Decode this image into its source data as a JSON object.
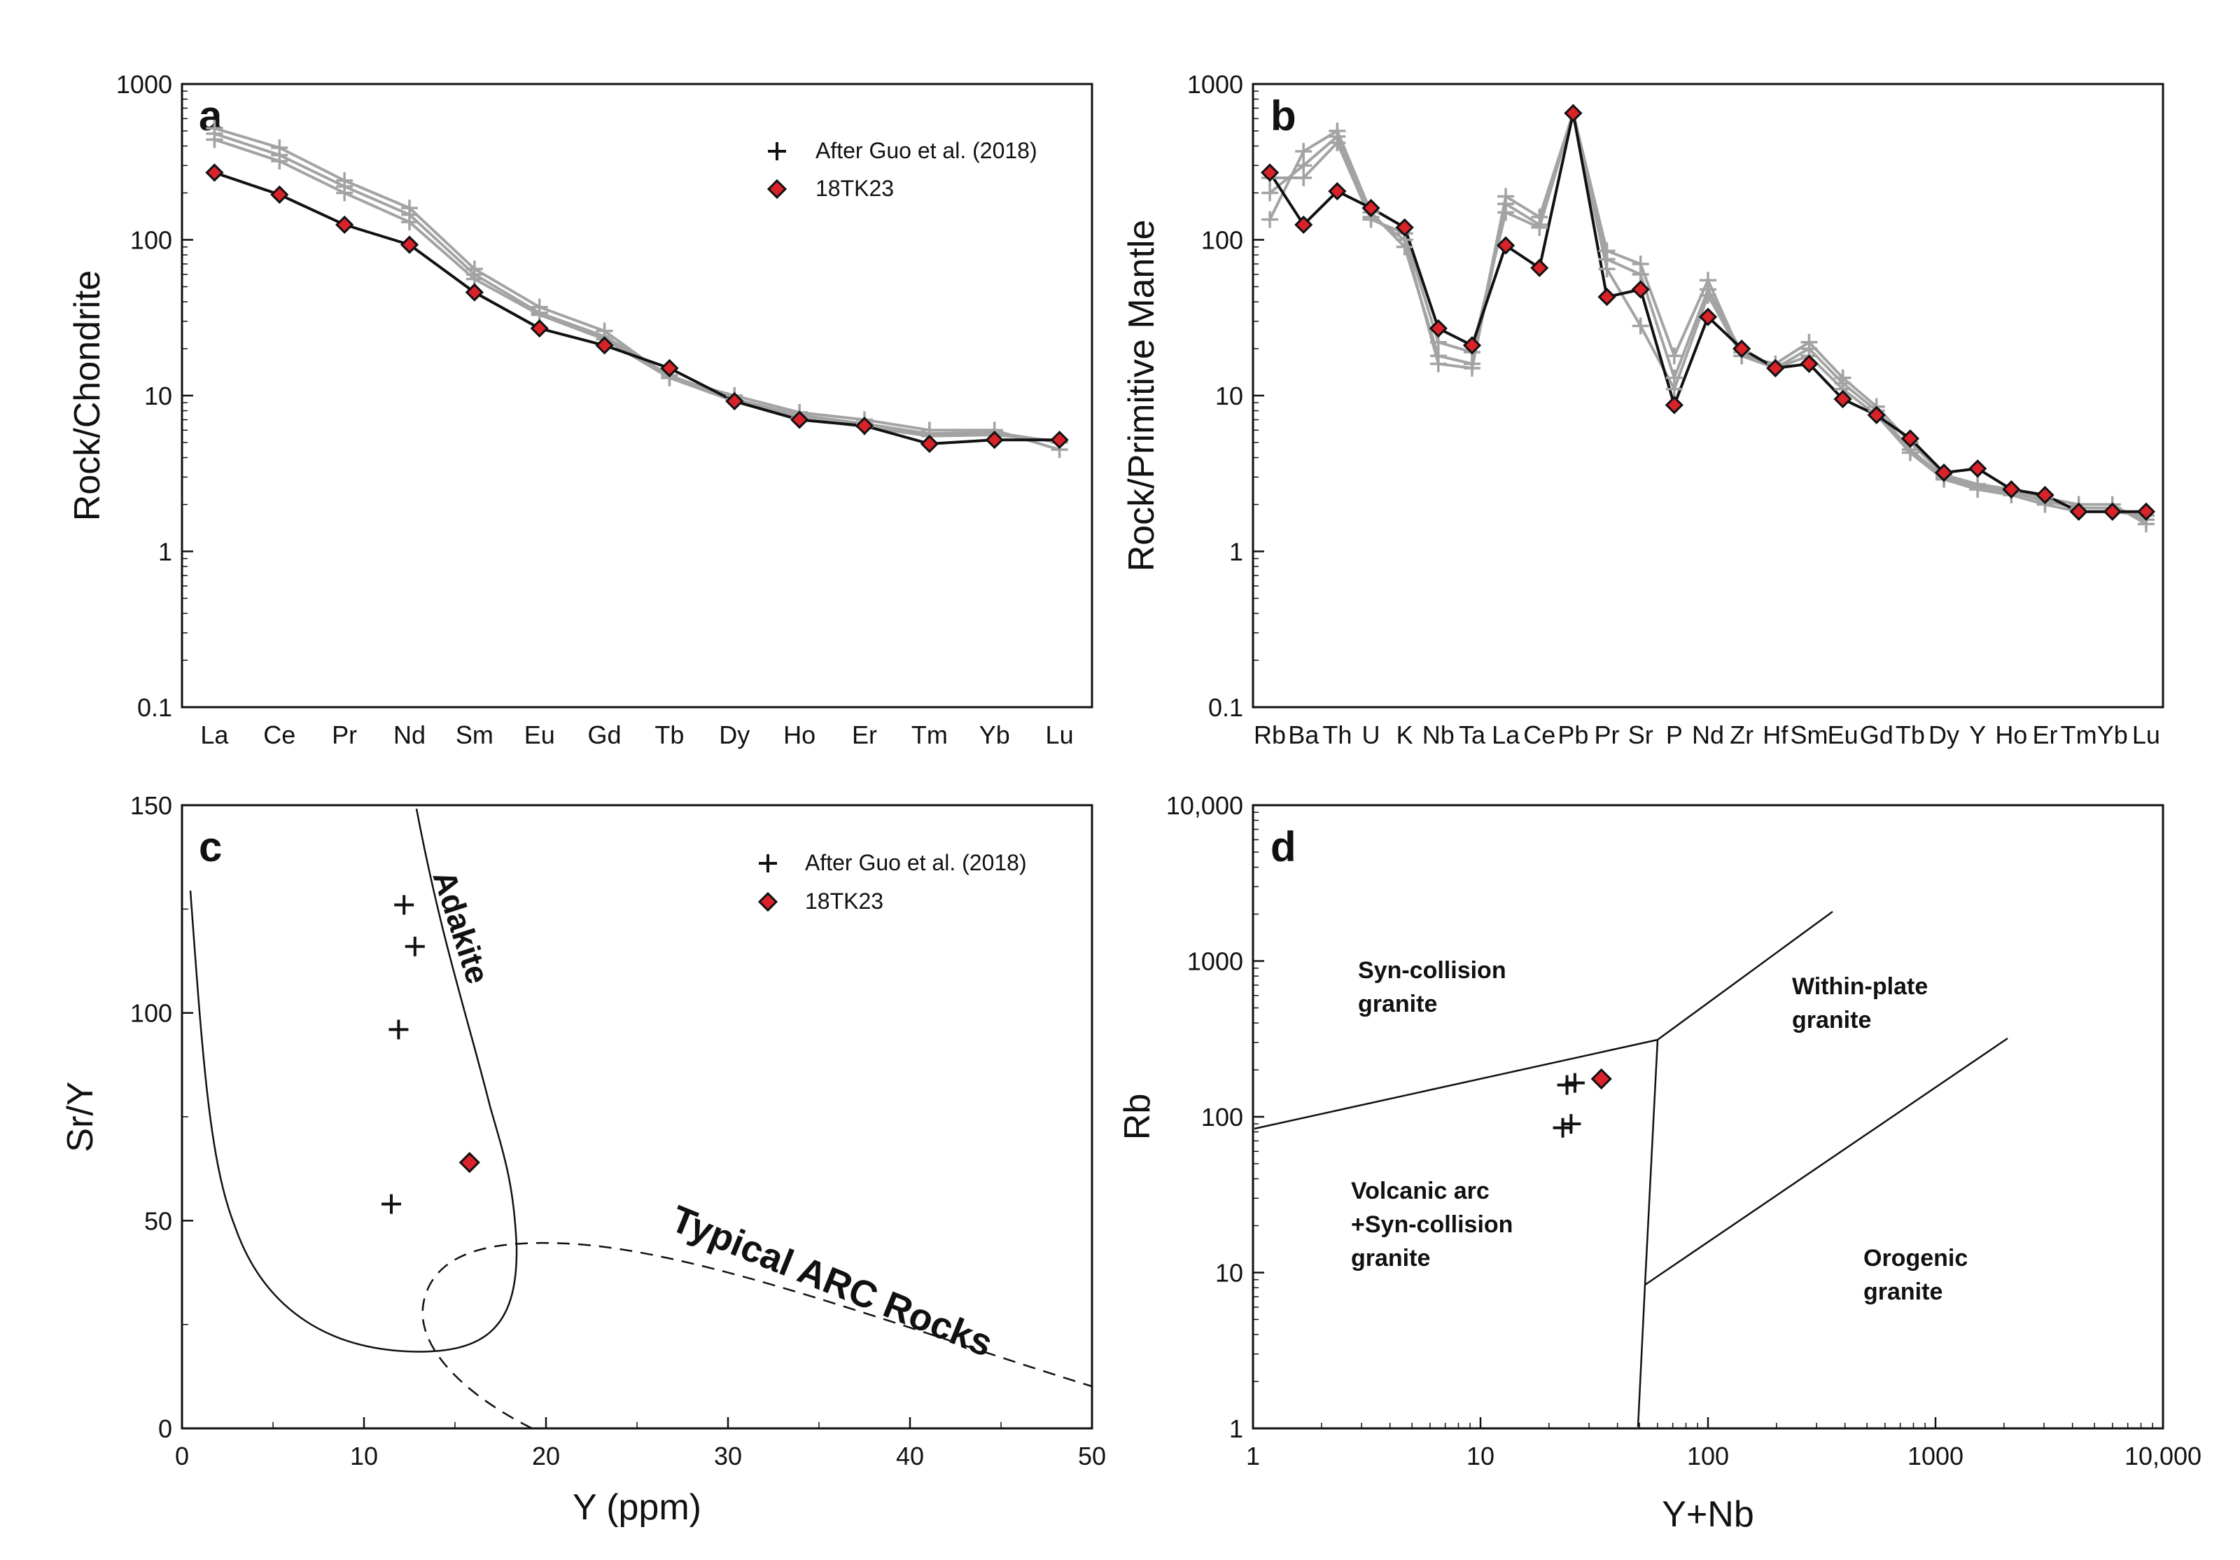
{
  "figure": {
    "legend_cross": "After Guo et al. (2018)",
    "legend_diamond": "18TK23"
  },
  "chart_data": [
    {
      "panel": "a",
      "type": "line",
      "title": "a",
      "xlabel": "",
      "ylabel": "Rock/Chondrite",
      "yscale": "log",
      "ylim": [
        0.1,
        1000
      ],
      "yticks": [
        "0.1",
        "1",
        "10",
        "100",
        "1000"
      ],
      "categories": [
        "La",
        "Ce",
        "Pr",
        "Nd",
        "Sm",
        "Eu",
        "Gd",
        "Tb",
        "Dy",
        "Ho",
        "Er",
        "Tm",
        "Yb",
        "Lu"
      ],
      "series": [
        {
          "name": "After Guo et al. (2018)",
          "marker": "cross",
          "values": [
            520,
            390,
            240,
            160,
            65,
            37,
            26,
            13,
            10,
            7.8,
            7,
            6,
            6,
            4.5
          ]
        },
        {
          "name": "After Guo et al. (2018)",
          "marker": "cross",
          "values": [
            480,
            350,
            220,
            145,
            60,
            34,
            24,
            13.5,
            9.5,
            7.5,
            6.6,
            5.7,
            5.8,
            5
          ]
        },
        {
          "name": "After Guo et al. (2018)",
          "marker": "cross",
          "values": [
            440,
            320,
            200,
            130,
            56,
            33,
            23,
            13,
            9.2,
            7.2,
            6.3,
            5.5,
            5.6,
            5.1
          ]
        },
        {
          "name": "18TK23",
          "marker": "diamond",
          "values": [
            270,
            195,
            125,
            93,
            46,
            27,
            21,
            15,
            9.2,
            7,
            6.4,
            4.9,
            5.2,
            5.2
          ]
        }
      ]
    },
    {
      "panel": "b",
      "type": "line",
      "title": "b",
      "xlabel": "",
      "ylabel": "Rock/Primitive Mantle",
      "yscale": "log",
      "ylim": [
        0.1,
        1000
      ],
      "yticks": [
        "0.1",
        "1",
        "10",
        "100",
        "1000"
      ],
      "categories": [
        "Rb",
        "Ba",
        "Th",
        "U",
        "K",
        "Nb",
        "Ta",
        "La",
        "Ce",
        "Pb",
        "Pr",
        "Sr",
        "P",
        "Nd",
        "Zr",
        "Hf",
        "Sm",
        "Eu",
        "Gd",
        "Tb",
        "Dy",
        "Y",
        "Ho",
        "Er",
        "Tm",
        "Yb",
        "Lu"
      ],
      "series": [
        {
          "name": "After Guo et al. (2018)",
          "marker": "cross",
          "values": [
            135,
            370,
            500,
            150,
            90,
            18,
            16,
            190,
            140,
            650,
            85,
            70,
            18,
            55,
            18,
            16,
            22,
            13,
            8.5,
            5,
            3.1,
            2.7,
            2.5,
            2.2,
            2,
            2,
            1.5
          ]
        },
        {
          "name": "After Guo et al. (2018)",
          "marker": "cross",
          "values": [
            200,
            300,
            460,
            140,
            100,
            16,
            15,
            170,
            125,
            650,
            75,
            60,
            13,
            48,
            19,
            15,
            20,
            12,
            8,
            4.5,
            3,
            2.6,
            2.4,
            2.1,
            1.9,
            1.9,
            1.6
          ]
        },
        {
          "name": "After Guo et al. (2018)",
          "marker": "cross",
          "values": [
            250,
            250,
            420,
            135,
            110,
            22,
            19,
            150,
            120,
            650,
            65,
            28,
            11,
            44,
            18,
            15,
            18,
            11,
            7.5,
            4.3,
            2.9,
            2.5,
            2.3,
            2,
            1.8,
            1.8,
            1.7
          ]
        },
        {
          "name": "18TK23",
          "marker": "diamond",
          "values": [
            270,
            125,
            205,
            160,
            120,
            27,
            21,
            92,
            66,
            650,
            43,
            48,
            8.7,
            32,
            20,
            15,
            16,
            9.5,
            7.5,
            5.3,
            3.2,
            3.4,
            2.5,
            2.3,
            1.8,
            1.8,
            1.8
          ]
        }
      ]
    },
    {
      "panel": "c",
      "type": "scatter",
      "title": "c",
      "xlabel": "Y (ppm)",
      "ylabel": "Sr/Y",
      "xlim": [
        0,
        50
      ],
      "ylim": [
        0,
        150
      ],
      "xticks": [
        "0",
        "10",
        "20",
        "30",
        "40",
        "50"
      ],
      "yticks": [
        "0",
        "50",
        "100",
        "150"
      ],
      "series": [
        {
          "name": "After Guo et al. (2018)",
          "marker": "cross",
          "x": [
            12.2,
            12.8,
            11.9,
            11.5
          ],
          "y": [
            126,
            116,
            96,
            54
          ]
        },
        {
          "name": "18TK23",
          "marker": "diamond",
          "x": [
            15.8
          ],
          "y": [
            64
          ]
        }
      ],
      "field_labels": [
        "Adakite",
        "Typical ARC Rocks"
      ]
    },
    {
      "panel": "d",
      "type": "scatter",
      "title": "d",
      "xlabel": "Y+Nb",
      "ylabel": "Rb",
      "xscale": "log",
      "yscale": "log",
      "xlim": [
        1,
        10000
      ],
      "ylim": [
        1,
        10000
      ],
      "xticks": [
        "1",
        "10",
        "100",
        "1000",
        "10,000"
      ],
      "yticks": [
        "1",
        "10",
        "100",
        "1000",
        "10,000"
      ],
      "series": [
        {
          "name": "After Guo et al. (2018)",
          "marker": "cross",
          "x": [
            24,
            26,
            23,
            25
          ],
          "y": [
            160,
            165,
            85,
            90
          ]
        },
        {
          "name": "18TK23",
          "marker": "diamond",
          "x": [
            34
          ],
          "y": [
            175
          ]
        }
      ],
      "field_labels": [
        "Syn-collision granite",
        "Within-plate granite",
        "Volcanic arc +Syn-collision granite",
        "Orogenic granite"
      ]
    }
  ]
}
